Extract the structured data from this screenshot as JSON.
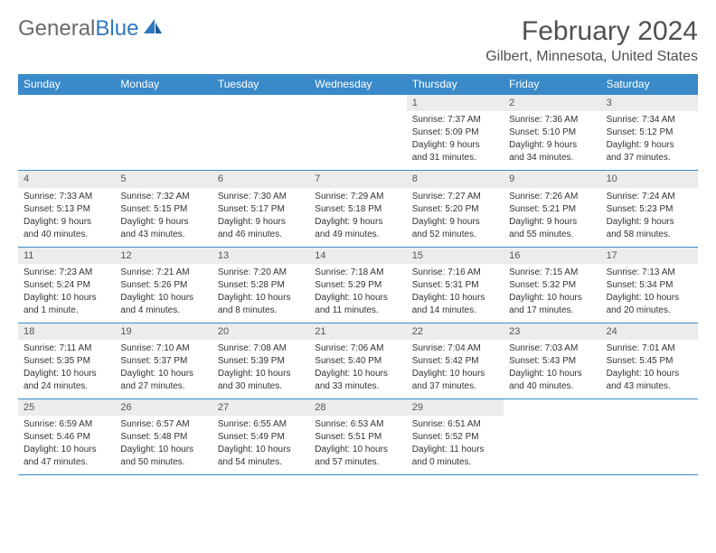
{
  "logo": {
    "part1": "General",
    "part2": "Blue"
  },
  "title": "February 2024",
  "subtitle": "Gilbert, Minnesota, United States",
  "colors": {
    "header_bg": "#3a8ac9",
    "header_text": "#ffffff",
    "daynum_bg": "#ececec",
    "border": "#3a8ac9",
    "logo_gray": "#6b6b6b",
    "logo_blue": "#2f78c4"
  },
  "weekdays": [
    "Sunday",
    "Monday",
    "Tuesday",
    "Wednesday",
    "Thursday",
    "Friday",
    "Saturday"
  ],
  "weeks": [
    [
      null,
      null,
      null,
      null,
      {
        "n": "1",
        "sunrise": "Sunrise: 7:37 AM",
        "sunset": "Sunset: 5:09 PM",
        "dl1": "Daylight: 9 hours",
        "dl2": "and 31 minutes."
      },
      {
        "n": "2",
        "sunrise": "Sunrise: 7:36 AM",
        "sunset": "Sunset: 5:10 PM",
        "dl1": "Daylight: 9 hours",
        "dl2": "and 34 minutes."
      },
      {
        "n": "3",
        "sunrise": "Sunrise: 7:34 AM",
        "sunset": "Sunset: 5:12 PM",
        "dl1": "Daylight: 9 hours",
        "dl2": "and 37 minutes."
      }
    ],
    [
      {
        "n": "4",
        "sunrise": "Sunrise: 7:33 AM",
        "sunset": "Sunset: 5:13 PM",
        "dl1": "Daylight: 9 hours",
        "dl2": "and 40 minutes."
      },
      {
        "n": "5",
        "sunrise": "Sunrise: 7:32 AM",
        "sunset": "Sunset: 5:15 PM",
        "dl1": "Daylight: 9 hours",
        "dl2": "and 43 minutes."
      },
      {
        "n": "6",
        "sunrise": "Sunrise: 7:30 AM",
        "sunset": "Sunset: 5:17 PM",
        "dl1": "Daylight: 9 hours",
        "dl2": "and 46 minutes."
      },
      {
        "n": "7",
        "sunrise": "Sunrise: 7:29 AM",
        "sunset": "Sunset: 5:18 PM",
        "dl1": "Daylight: 9 hours",
        "dl2": "and 49 minutes."
      },
      {
        "n": "8",
        "sunrise": "Sunrise: 7:27 AM",
        "sunset": "Sunset: 5:20 PM",
        "dl1": "Daylight: 9 hours",
        "dl2": "and 52 minutes."
      },
      {
        "n": "9",
        "sunrise": "Sunrise: 7:26 AM",
        "sunset": "Sunset: 5:21 PM",
        "dl1": "Daylight: 9 hours",
        "dl2": "and 55 minutes."
      },
      {
        "n": "10",
        "sunrise": "Sunrise: 7:24 AM",
        "sunset": "Sunset: 5:23 PM",
        "dl1": "Daylight: 9 hours",
        "dl2": "and 58 minutes."
      }
    ],
    [
      {
        "n": "11",
        "sunrise": "Sunrise: 7:23 AM",
        "sunset": "Sunset: 5:24 PM",
        "dl1": "Daylight: 10 hours",
        "dl2": "and 1 minute."
      },
      {
        "n": "12",
        "sunrise": "Sunrise: 7:21 AM",
        "sunset": "Sunset: 5:26 PM",
        "dl1": "Daylight: 10 hours",
        "dl2": "and 4 minutes."
      },
      {
        "n": "13",
        "sunrise": "Sunrise: 7:20 AM",
        "sunset": "Sunset: 5:28 PM",
        "dl1": "Daylight: 10 hours",
        "dl2": "and 8 minutes."
      },
      {
        "n": "14",
        "sunrise": "Sunrise: 7:18 AM",
        "sunset": "Sunset: 5:29 PM",
        "dl1": "Daylight: 10 hours",
        "dl2": "and 11 minutes."
      },
      {
        "n": "15",
        "sunrise": "Sunrise: 7:16 AM",
        "sunset": "Sunset: 5:31 PM",
        "dl1": "Daylight: 10 hours",
        "dl2": "and 14 minutes."
      },
      {
        "n": "16",
        "sunrise": "Sunrise: 7:15 AM",
        "sunset": "Sunset: 5:32 PM",
        "dl1": "Daylight: 10 hours",
        "dl2": "and 17 minutes."
      },
      {
        "n": "17",
        "sunrise": "Sunrise: 7:13 AM",
        "sunset": "Sunset: 5:34 PM",
        "dl1": "Daylight: 10 hours",
        "dl2": "and 20 minutes."
      }
    ],
    [
      {
        "n": "18",
        "sunrise": "Sunrise: 7:11 AM",
        "sunset": "Sunset: 5:35 PM",
        "dl1": "Daylight: 10 hours",
        "dl2": "and 24 minutes."
      },
      {
        "n": "19",
        "sunrise": "Sunrise: 7:10 AM",
        "sunset": "Sunset: 5:37 PM",
        "dl1": "Daylight: 10 hours",
        "dl2": "and 27 minutes."
      },
      {
        "n": "20",
        "sunrise": "Sunrise: 7:08 AM",
        "sunset": "Sunset: 5:39 PM",
        "dl1": "Daylight: 10 hours",
        "dl2": "and 30 minutes."
      },
      {
        "n": "21",
        "sunrise": "Sunrise: 7:06 AM",
        "sunset": "Sunset: 5:40 PM",
        "dl1": "Daylight: 10 hours",
        "dl2": "and 33 minutes."
      },
      {
        "n": "22",
        "sunrise": "Sunrise: 7:04 AM",
        "sunset": "Sunset: 5:42 PM",
        "dl1": "Daylight: 10 hours",
        "dl2": "and 37 minutes."
      },
      {
        "n": "23",
        "sunrise": "Sunrise: 7:03 AM",
        "sunset": "Sunset: 5:43 PM",
        "dl1": "Daylight: 10 hours",
        "dl2": "and 40 minutes."
      },
      {
        "n": "24",
        "sunrise": "Sunrise: 7:01 AM",
        "sunset": "Sunset: 5:45 PM",
        "dl1": "Daylight: 10 hours",
        "dl2": "and 43 minutes."
      }
    ],
    [
      {
        "n": "25",
        "sunrise": "Sunrise: 6:59 AM",
        "sunset": "Sunset: 5:46 PM",
        "dl1": "Daylight: 10 hours",
        "dl2": "and 47 minutes."
      },
      {
        "n": "26",
        "sunrise": "Sunrise: 6:57 AM",
        "sunset": "Sunset: 5:48 PM",
        "dl1": "Daylight: 10 hours",
        "dl2": "and 50 minutes."
      },
      {
        "n": "27",
        "sunrise": "Sunrise: 6:55 AM",
        "sunset": "Sunset: 5:49 PM",
        "dl1": "Daylight: 10 hours",
        "dl2": "and 54 minutes."
      },
      {
        "n": "28",
        "sunrise": "Sunrise: 6:53 AM",
        "sunset": "Sunset: 5:51 PM",
        "dl1": "Daylight: 10 hours",
        "dl2": "and 57 minutes."
      },
      {
        "n": "29",
        "sunrise": "Sunrise: 6:51 AM",
        "sunset": "Sunset: 5:52 PM",
        "dl1": "Daylight: 11 hours",
        "dl2": "and 0 minutes."
      },
      null,
      null
    ]
  ]
}
